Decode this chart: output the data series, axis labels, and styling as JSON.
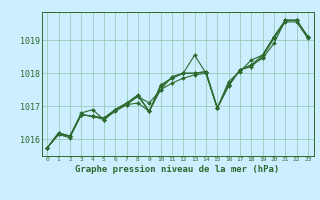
{
  "title": "Graphe pression niveau de la mer (hPa)",
  "bg_color": "#cceeff",
  "grid_color": "#99ccbb",
  "line_color": "#2d6a2d",
  "marker_color": "#2d6a2d",
  "ylim": [
    1015.5,
    1019.85
  ],
  "xlim": [
    -0.5,
    23.5
  ],
  "yticks": [
    1016,
    1017,
    1018,
    1019
  ],
  "xticks": [
    0,
    1,
    2,
    3,
    4,
    5,
    6,
    7,
    8,
    9,
    10,
    11,
    12,
    13,
    14,
    15,
    16,
    17,
    18,
    19,
    20,
    21,
    22,
    23
  ],
  "series": [
    [
      1015.75,
      1016.2,
      1016.1,
      1016.8,
      1016.9,
      1016.6,
      1016.85,
      1017.05,
      1017.1,
      1016.85,
      1017.5,
      1017.7,
      1017.85,
      1017.95,
      1018.0,
      1016.95,
      1017.65,
      1018.1,
      1018.25,
      1018.45,
      1018.9,
      1019.6,
      1019.6,
      1019.1
    ],
    [
      1015.75,
      1016.2,
      1016.1,
      1016.75,
      1016.7,
      1016.65,
      1016.9,
      1017.1,
      1017.35,
      1016.85,
      1017.65,
      1017.85,
      1018.0,
      1018.55,
      1018.0,
      1016.95,
      1017.75,
      1018.05,
      1018.4,
      1018.55,
      1019.1,
      1019.6,
      1019.6,
      1019.1
    ],
    [
      1015.75,
      1016.15,
      1016.1,
      1016.75,
      1016.7,
      1016.65,
      1016.9,
      1017.1,
      1017.3,
      1017.1,
      1017.5,
      1017.9,
      1018.0,
      1018.0,
      1018.05,
      1016.95,
      1017.65,
      1018.1,
      1018.25,
      1018.55,
      1019.1,
      1019.6,
      1019.6,
      1019.1
    ],
    [
      1015.75,
      1016.15,
      1016.05,
      1016.75,
      1016.7,
      1016.6,
      1016.9,
      1017.05,
      1017.3,
      1016.85,
      1017.6,
      1017.85,
      1018.0,
      1018.0,
      1018.05,
      1016.95,
      1017.6,
      1018.1,
      1018.2,
      1018.5,
      1019.05,
      1019.55,
      1019.55,
      1019.05
    ]
  ],
  "figwidth": 3.2,
  "figheight": 2.0,
  "dpi": 100
}
